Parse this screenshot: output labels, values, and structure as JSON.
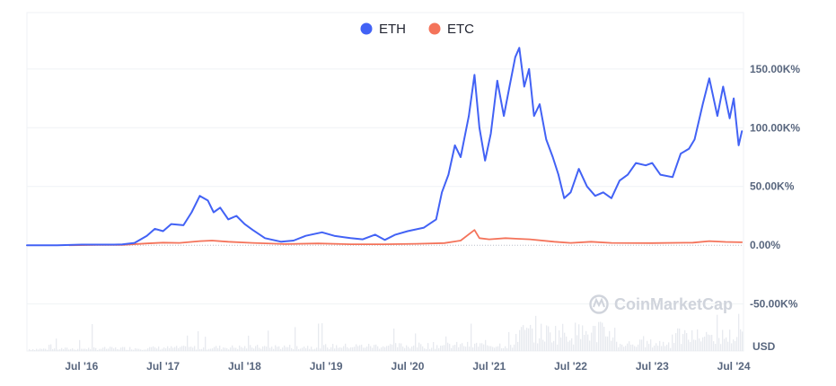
{
  "chart_data": {
    "type": "line",
    "title": "",
    "xlabel": "",
    "ylabel": "",
    "currency": "USD",
    "watermark": "CoinMarketCap",
    "legend_placement": "top-center",
    "grid": true,
    "xlim": [
      2015.83,
      2024.62
    ],
    "ylim": [
      -90000,
      198000
    ],
    "yticks": [
      {
        "value": 150000,
        "label": "150.00K%"
      },
      {
        "value": 100000,
        "label": "100.00K%"
      },
      {
        "value": 50000,
        "label": "50.00K%"
      },
      {
        "value": 0,
        "label": "0.00%"
      },
      {
        "value": -50000,
        "label": "-50.00K%"
      }
    ],
    "xticks": [
      {
        "value": 2016.5,
        "label": "Jul '16"
      },
      {
        "value": 2017.5,
        "label": "Jul '17"
      },
      {
        "value": 2018.5,
        "label": "Jul '18"
      },
      {
        "value": 2019.5,
        "label": "Jul '19"
      },
      {
        "value": 2020.5,
        "label": "Jul '20"
      },
      {
        "value": 2021.5,
        "label": "Jul '21"
      },
      {
        "value": 2022.5,
        "label": "Jul '22"
      },
      {
        "value": 2023.5,
        "label": "Jul '23"
      },
      {
        "value": 2024.5,
        "label": "Jul '24"
      }
    ],
    "series": [
      {
        "name": "ETH",
        "color": "#4262f5",
        "points": [
          [
            2015.83,
            0
          ],
          [
            2016.2,
            0
          ],
          [
            2016.5,
            500
          ],
          [
            2016.9,
            500
          ],
          [
            2017.0,
            700
          ],
          [
            2017.15,
            2000
          ],
          [
            2017.3,
            8000
          ],
          [
            2017.4,
            14000
          ],
          [
            2017.5,
            12000
          ],
          [
            2017.6,
            18000
          ],
          [
            2017.75,
            17000
          ],
          [
            2017.85,
            28000
          ],
          [
            2017.95,
            42000
          ],
          [
            2018.05,
            38000
          ],
          [
            2018.12,
            28000
          ],
          [
            2018.2,
            32000
          ],
          [
            2018.3,
            22000
          ],
          [
            2018.4,
            25000
          ],
          [
            2018.5,
            18000
          ],
          [
            2018.6,
            13000
          ],
          [
            2018.75,
            6000
          ],
          [
            2018.95,
            3000
          ],
          [
            2019.1,
            4000
          ],
          [
            2019.25,
            8000
          ],
          [
            2019.45,
            11000
          ],
          [
            2019.6,
            8000
          ],
          [
            2019.8,
            6000
          ],
          [
            2019.95,
            5000
          ],
          [
            2020.1,
            9000
          ],
          [
            2020.22,
            4500
          ],
          [
            2020.35,
            9000
          ],
          [
            2020.5,
            12000
          ],
          [
            2020.7,
            15000
          ],
          [
            2020.85,
            22000
          ],
          [
            2020.92,
            45000
          ],
          [
            2021.0,
            60000
          ],
          [
            2021.08,
            85000
          ],
          [
            2021.15,
            75000
          ],
          [
            2021.25,
            110000
          ],
          [
            2021.32,
            145000
          ],
          [
            2021.38,
            100000
          ],
          [
            2021.45,
            72000
          ],
          [
            2021.52,
            95000
          ],
          [
            2021.6,
            140000
          ],
          [
            2021.68,
            110000
          ],
          [
            2021.75,
            135000
          ],
          [
            2021.82,
            160000
          ],
          [
            2021.87,
            168000
          ],
          [
            2021.93,
            135000
          ],
          [
            2021.99,
            150000
          ],
          [
            2022.05,
            110000
          ],
          [
            2022.12,
            120000
          ],
          [
            2022.2,
            90000
          ],
          [
            2022.28,
            75000
          ],
          [
            2022.35,
            60000
          ],
          [
            2022.42,
            40000
          ],
          [
            2022.5,
            45000
          ],
          [
            2022.6,
            65000
          ],
          [
            2022.7,
            50000
          ],
          [
            2022.8,
            42000
          ],
          [
            2022.9,
            45000
          ],
          [
            2023.0,
            40000
          ],
          [
            2023.1,
            55000
          ],
          [
            2023.2,
            60000
          ],
          [
            2023.3,
            70000
          ],
          [
            2023.42,
            68000
          ],
          [
            2023.5,
            70000
          ],
          [
            2023.6,
            60000
          ],
          [
            2023.75,
            58000
          ],
          [
            2023.85,
            78000
          ],
          [
            2023.95,
            82000
          ],
          [
            2024.02,
            90000
          ],
          [
            2024.12,
            120000
          ],
          [
            2024.2,
            142000
          ],
          [
            2024.3,
            110000
          ],
          [
            2024.37,
            135000
          ],
          [
            2024.45,
            108000
          ],
          [
            2024.5,
            125000
          ],
          [
            2024.56,
            85000
          ],
          [
            2024.6,
            97000
          ]
        ]
      },
      {
        "name": "ETC",
        "color": "#f4735a",
        "points": [
          [
            2016.35,
            0
          ],
          [
            2016.7,
            200
          ],
          [
            2017.0,
            300
          ],
          [
            2017.3,
            1500
          ],
          [
            2017.5,
            2200
          ],
          [
            2017.7,
            2000
          ],
          [
            2017.95,
            3500
          ],
          [
            2018.1,
            4000
          ],
          [
            2018.3,
            3000
          ],
          [
            2018.6,
            2000
          ],
          [
            2019.0,
            1000
          ],
          [
            2019.4,
            1500
          ],
          [
            2019.8,
            800
          ],
          [
            2020.2,
            800
          ],
          [
            2020.6,
            1200
          ],
          [
            2020.95,
            1800
          ],
          [
            2021.15,
            4000
          ],
          [
            2021.32,
            13000
          ],
          [
            2021.38,
            6000
          ],
          [
            2021.5,
            5000
          ],
          [
            2021.7,
            6000
          ],
          [
            2021.85,
            5500
          ],
          [
            2022.0,
            5000
          ],
          [
            2022.3,
            3000
          ],
          [
            2022.5,
            2000
          ],
          [
            2022.75,
            3000
          ],
          [
            2023.0,
            2000
          ],
          [
            2023.5,
            1800
          ],
          [
            2024.0,
            2200
          ],
          [
            2024.2,
            3500
          ],
          [
            2024.4,
            2800
          ],
          [
            2024.6,
            2500
          ]
        ]
      }
    ]
  }
}
